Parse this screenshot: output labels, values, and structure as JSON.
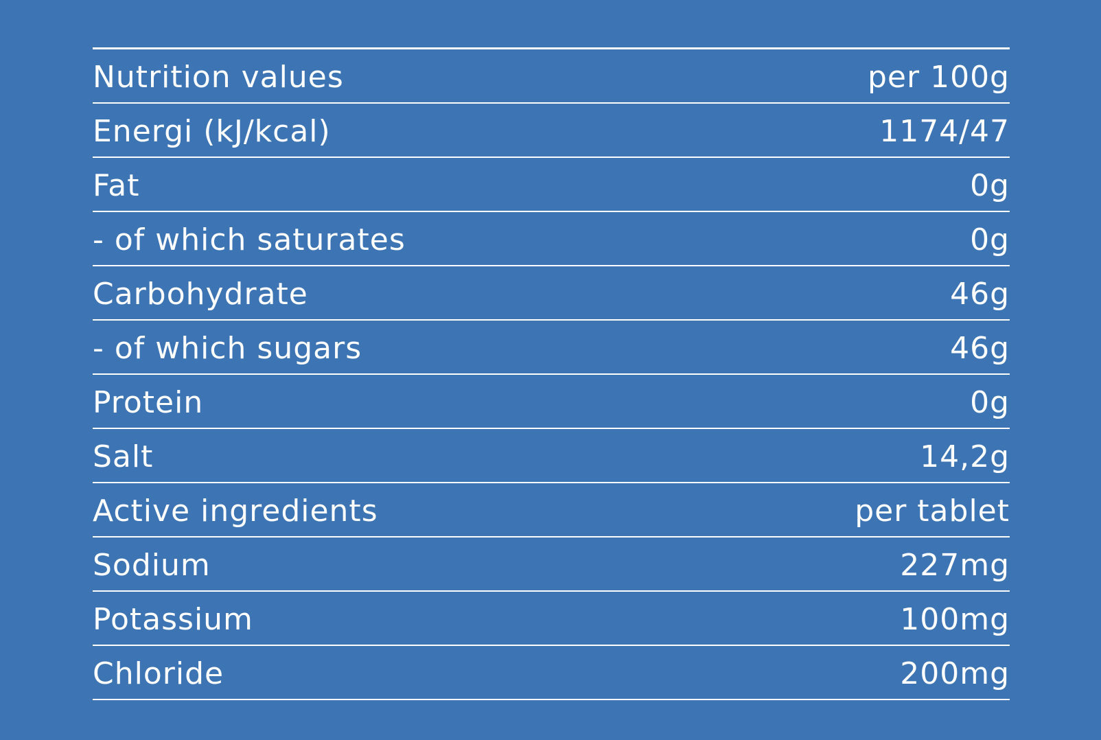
{
  "table": {
    "rows": [
      [
        "Nutrition values",
        "per 100g"
      ],
      [
        "Energi (kJ/kcal)",
        "1174/47"
      ],
      [
        "Fat",
        "0g"
      ],
      [
        "- of which saturates",
        "0g"
      ],
      [
        "Carbohydrate",
        "46g"
      ],
      [
        "- of which sugars",
        "46g"
      ],
      [
        "Protein",
        "0g"
      ],
      [
        "Salt",
        "14,2g"
      ],
      [
        "Active ingredients",
        "per tablet"
      ],
      [
        "Sodium",
        "227mg"
      ],
      [
        "Potassium",
        "100mg"
      ],
      [
        "Chloride",
        "200mg"
      ]
    ]
  }
}
